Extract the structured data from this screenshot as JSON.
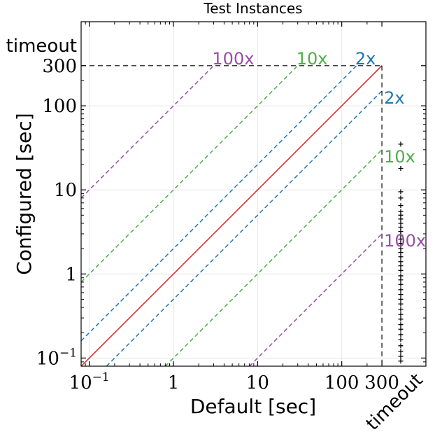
{
  "chart_data": {
    "type": "scatter",
    "title": "Test Instances",
    "xlabel": "Default [sec]",
    "ylabel": "Configured [sec]",
    "x_scale": "log",
    "y_scale": "log",
    "xlim": [
      0.08,
      1000
    ],
    "ylim": [
      0.08,
      1000
    ],
    "cutoff": 300,
    "timeout_label": "timeout",
    "x_ticks": [
      {
        "value": 0.1,
        "label": "10",
        "exponent": "−1"
      },
      {
        "value": 1,
        "label": "1",
        "exponent": ""
      },
      {
        "value": 10,
        "label": "10",
        "exponent": ""
      },
      {
        "value": 100,
        "label": "100",
        "exponent": ""
      },
      {
        "value": 300,
        "label": "300",
        "exponent": ""
      }
    ],
    "y_ticks": [
      {
        "value": 0.1,
        "label": "10",
        "exponent": "−1"
      },
      {
        "value": 1,
        "label": "1",
        "exponent": ""
      },
      {
        "value": 10,
        "label": "10",
        "exponent": ""
      },
      {
        "value": 100,
        "label": "100",
        "exponent": ""
      },
      {
        "value": 300,
        "label": "300",
        "exponent": ""
      }
    ],
    "grid": true,
    "reference_lines": [
      {
        "factor": 1,
        "style": "solid",
        "color": "#d62728",
        "label": ""
      },
      {
        "factor": 2,
        "style": "dashed",
        "color": "#1f77b4",
        "label": "2x"
      },
      {
        "factor": 0.5,
        "style": "dashed",
        "color": "#1f77b4",
        "label": "2x"
      },
      {
        "factor": 10,
        "style": "dashed",
        "color": "#4daf4a",
        "label": "10x"
      },
      {
        "factor": 0.1,
        "style": "dashed",
        "color": "#4daf4a",
        "label": "10x"
      },
      {
        "factor": 100,
        "style": "dashed",
        "color": "#984ea3",
        "label": "100x"
      },
      {
        "factor": 0.01,
        "style": "dashed",
        "color": "#984ea3",
        "label": "100x"
      }
    ],
    "points_marker": "+",
    "points_color": "#000000",
    "points": [
      {
        "x": "timeout",
        "y": 35
      },
      {
        "x": "timeout",
        "y": 18
      },
      {
        "x": "timeout",
        "y": 9.5
      },
      {
        "x": "timeout",
        "y": 8.0
      },
      {
        "x": "timeout",
        "y": 6.5
      },
      {
        "x": "timeout",
        "y": 5.5
      },
      {
        "x": "timeout",
        "y": 5.0
      },
      {
        "x": "timeout",
        "y": 4.5
      },
      {
        "x": "timeout",
        "y": 4.0
      },
      {
        "x": "timeout",
        "y": 3.6
      },
      {
        "x": "timeout",
        "y": 3.2
      },
      {
        "x": "timeout",
        "y": 2.9
      },
      {
        "x": "timeout",
        "y": 2.6
      },
      {
        "x": "timeout",
        "y": 2.3
      },
      {
        "x": "timeout",
        "y": 2.0
      },
      {
        "x": "timeout",
        "y": 1.8
      },
      {
        "x": "timeout",
        "y": 1.6
      },
      {
        "x": "timeout",
        "y": 1.4
      },
      {
        "x": "timeout",
        "y": 1.25
      },
      {
        "x": "timeout",
        "y": 1.1
      },
      {
        "x": "timeout",
        "y": 0.95
      },
      {
        "x": "timeout",
        "y": 0.85
      },
      {
        "x": "timeout",
        "y": 0.75
      },
      {
        "x": "timeout",
        "y": 0.65
      },
      {
        "x": "timeout",
        "y": 0.57
      },
      {
        "x": "timeout",
        "y": 0.5
      },
      {
        "x": "timeout",
        "y": 0.44
      },
      {
        "x": "timeout",
        "y": 0.38
      },
      {
        "x": "timeout",
        "y": 0.33
      },
      {
        "x": "timeout",
        "y": 0.29
      },
      {
        "x": "timeout",
        "y": 0.25
      },
      {
        "x": "timeout",
        "y": 0.22
      },
      {
        "x": "timeout",
        "y": 0.19
      },
      {
        "x": "timeout",
        "y": 0.165
      },
      {
        "x": "timeout",
        "y": 0.14
      },
      {
        "x": "timeout",
        "y": 0.12
      },
      {
        "x": "timeout",
        "y": 0.105
      },
      {
        "x": "timeout",
        "y": 0.092
      }
    ]
  }
}
